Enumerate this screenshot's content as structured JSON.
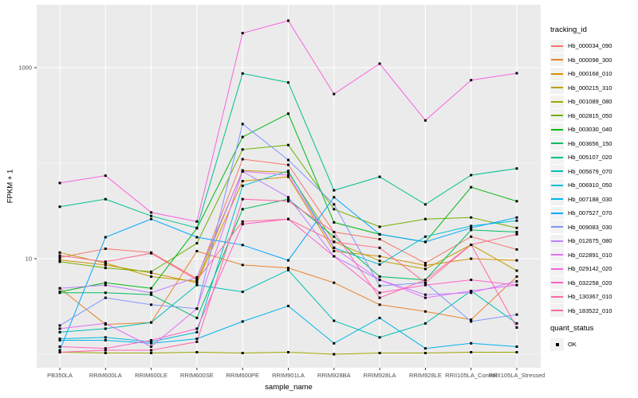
{
  "figure": {
    "panel_bg": "#EBEBEB",
    "grid_color": "#FFFFFF",
    "axis_text_color": "#4D4D4D",
    "tick_color": "#333333",
    "point_color": "#000000",
    "legend_key_bg": "#F2F2F2"
  },
  "chart_data": {
    "type": "line",
    "title": "",
    "xlabel": "sample_name",
    "ylabel": "FPKM + 1",
    "y_scale": "log10",
    "grid": true,
    "legend_position": "right",
    "ylim": [
      0.72,
      4500
    ],
    "y_ticks": [
      {
        "value": 10,
        "label": "10"
      },
      {
        "value": 1000,
        "label": "1000"
      }
    ],
    "y_minor_gridlines": [
      1,
      100
    ],
    "categories": [
      "PB350LA",
      "RRIM600LA",
      "RRIM600LE",
      "RRIM600SE",
      "RRIM600PE",
      "RRIM901LA",
      "RRIM928BA",
      "RRIM928LA",
      "RRIM928LE",
      "RRII105LA_Control",
      "RRII105LA_Stressed"
    ],
    "legend": {
      "title": "tracking_id"
    },
    "legend2": {
      "title": "quant_status",
      "items": [
        "OK"
      ],
      "marker": "black-square"
    },
    "series": [
      {
        "name": "Hb_000034_090",
        "color": "#F8766D",
        "values": [
          10.3,
          12.7,
          11.6,
          6.2,
          110,
          96,
          19,
          16,
          9.0,
          17,
          12.5
        ]
      },
      {
        "name": "Hb_000098_300",
        "color": "#E9842C",
        "values": [
          4.9,
          2.05,
          2.15,
          12,
          8.6,
          8.0,
          5.6,
          3.3,
          2.8,
          2.3,
          6.5
        ]
      },
      {
        "name": "Hb_000168_010",
        "color": "#D69100",
        "values": [
          9.7,
          8.6,
          7.1,
          5.6,
          65,
          72,
          12,
          10.6,
          8.5,
          10,
          9.6
        ]
      },
      {
        "name": "Hb_000215_310",
        "color": "#BC9D00",
        "values": [
          11.6,
          9.0,
          6.5,
          5.8,
          84,
          80,
          15,
          9.5,
          7.8,
          14,
          7.5
        ]
      },
      {
        "name": "Hb_001089_080",
        "color": "#9CA700",
        "values": [
          1.05,
          1.03,
          1.03,
          1.05,
          1.03,
          1.05,
          1.0,
          1.03,
          1.03,
          1.05,
          1.05
        ]
      },
      {
        "name": "Hb_002815_050",
        "color": "#6FB000",
        "values": [
          9.3,
          8.0,
          7.3,
          14.5,
          139,
          155,
          33,
          21.6,
          26,
          27,
          21
        ]
      },
      {
        "name": "Hb_003030_040",
        "color": "#00B813",
        "values": [
          4.5,
          5.6,
          4.9,
          20.8,
          188,
          330,
          24,
          18,
          15,
          56,
          40
        ]
      },
      {
        "name": "Hb_003656_150",
        "color": "#00BD61",
        "values": [
          4.4,
          4.4,
          4.2,
          2.4,
          33,
          42,
          17,
          6.5,
          6.0,
          20,
          19
        ]
      },
      {
        "name": "Hb_005107_020",
        "color": "#00C08E",
        "values": [
          35,
          42,
          28,
          21,
          870,
          700,
          52,
          72,
          37,
          75,
          88
        ]
      },
      {
        "name": "Hb_005679_070",
        "color": "#00C0B4",
        "values": [
          1.7,
          1.85,
          2.15,
          5.3,
          4.5,
          7.6,
          2.24,
          1.5,
          2.1,
          4.6,
          2.1
        ]
      },
      {
        "name": "Hb_006910_050",
        "color": "#00BDD4",
        "values": [
          1.45,
          1.5,
          1.35,
          1.7,
          58,
          83,
          13,
          8.7,
          17,
          22,
          25
        ]
      },
      {
        "name": "Hb_007188_030",
        "color": "#00B5EC",
        "values": [
          1.4,
          1.4,
          1.3,
          1.45,
          2.2,
          3.2,
          1.3,
          2.4,
          1.15,
          1.3,
          1.2
        ]
      },
      {
        "name": "Hb_007527_070",
        "color": "#00A7FF",
        "values": [
          1.1,
          16.8,
          26,
          16.8,
          13.9,
          9.6,
          44,
          18,
          15,
          21,
          27
        ]
      },
      {
        "name": "Hb_009083_030",
        "color": "#7F96FF",
        "values": [
          2.0,
          3.9,
          3.3,
          3.0,
          257,
          108,
          37,
          5.2,
          5.6,
          2.2,
          2.6
        ]
      },
      {
        "name": "Hb_012675_080",
        "color": "#BC81FF",
        "values": [
          4.9,
          5.3,
          4.4,
          6.4,
          82,
          44,
          10.6,
          6.0,
          4.2,
          4.4,
          5.8
        ]
      },
      {
        "name": "Hb_022891_010",
        "color": "#E26EF7",
        "values": [
          1.85,
          2.1,
          1.2,
          3.0,
          82,
          75,
          13,
          6.0,
          3.9,
          4.6,
          5.3
        ]
      },
      {
        "name": "Hb_029142_020",
        "color": "#F863DF",
        "values": [
          62,
          74,
          30.5,
          24.5,
          2300,
          3100,
          530,
          1100,
          280,
          740,
          875
        ]
      },
      {
        "name": "Hb_032258_020",
        "color": "#FF61C7",
        "values": [
          1.2,
          1.15,
          1.4,
          1.85,
          23,
          26,
          10.6,
          4.4,
          5.3,
          6.0,
          5.3
        ]
      },
      {
        "name": "Hb_130367_010",
        "color": "#FF68A8",
        "values": [
          1.05,
          1.1,
          1.1,
          1.35,
          42,
          40,
          19,
          3.9,
          6.0,
          14,
          1.9
        ]
      },
      {
        "name": "Hb_183522_010",
        "color": "#FF6C91",
        "values": [
          10.8,
          9.3,
          11.4,
          6.0,
          24.5,
          26,
          15,
          13,
          5.6,
          14,
          18
        ]
      }
    ]
  }
}
